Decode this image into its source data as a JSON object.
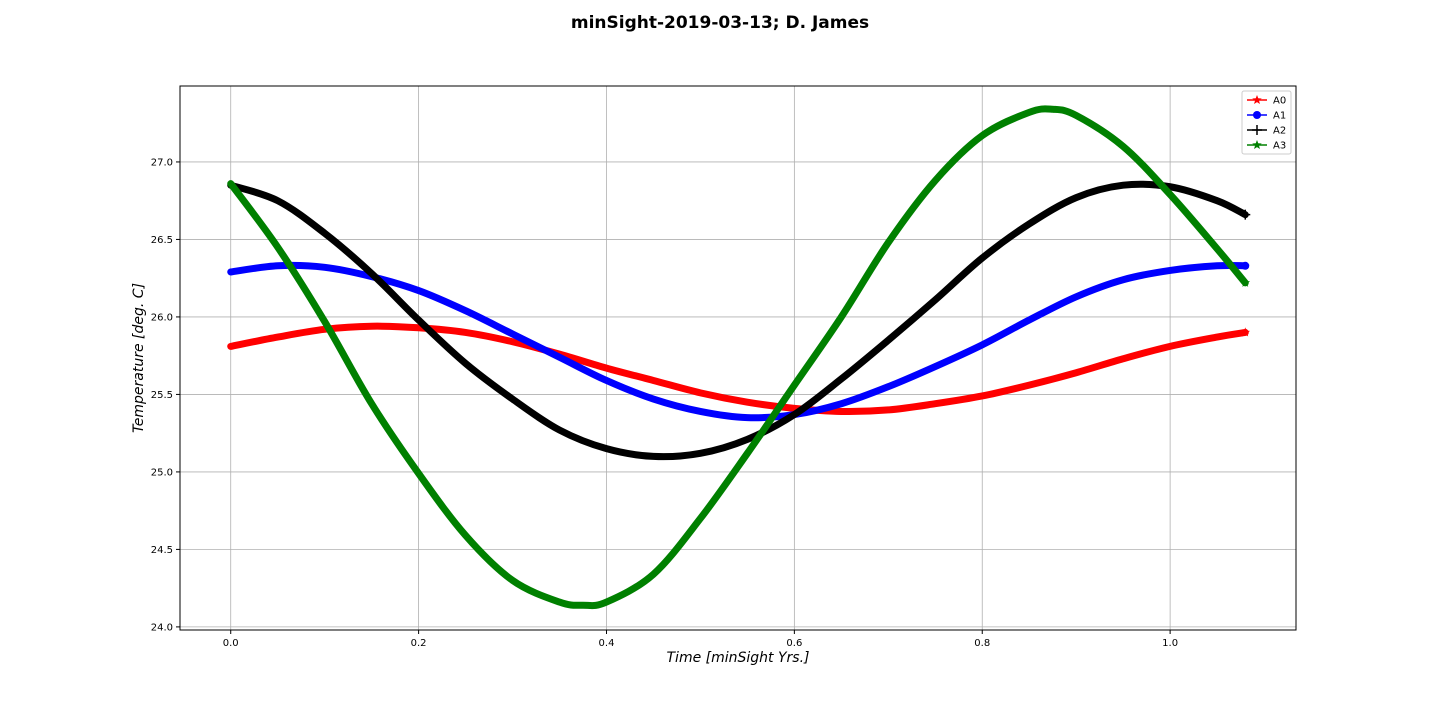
{
  "chart_data": {
    "type": "line",
    "title": "minSight-2019-03-13; D. James",
    "xlabel": "Time [minSight Yrs.]",
    "ylabel": "Temperature [deg. C]",
    "xlim": [
      -0.054,
      1.134
    ],
    "ylim": [
      23.98,
      27.49
    ],
    "xticks": [
      0.0,
      0.2,
      0.4,
      0.6,
      0.8,
      1.0
    ],
    "xtick_labels": [
      "0.0",
      "0.2",
      "0.4",
      "0.6",
      "0.8",
      "1.0"
    ],
    "yticks": [
      24.0,
      24.5,
      25.0,
      25.5,
      26.0,
      26.5,
      27.0
    ],
    "ytick_labels": [
      "24.0",
      "24.5",
      "25.0",
      "25.5",
      "26.0",
      "26.5",
      "27.0"
    ],
    "grid": true,
    "legend_position": "top-right",
    "series": [
      {
        "name": "A0",
        "color": "#ff0000",
        "marker": "star",
        "x": [
          0.0,
          0.05,
          0.1,
          0.15,
          0.2,
          0.25,
          0.3,
          0.35,
          0.4,
          0.45,
          0.5,
          0.55,
          0.6,
          0.65,
          0.7,
          0.75,
          0.8,
          0.85,
          0.9,
          0.95,
          1.0,
          1.05,
          1.08
        ],
        "values": [
          25.81,
          25.87,
          25.92,
          25.94,
          25.93,
          25.9,
          25.84,
          25.76,
          25.67,
          25.59,
          25.51,
          25.45,
          25.41,
          25.39,
          25.4,
          25.44,
          25.49,
          25.56,
          25.64,
          25.73,
          25.81,
          25.87,
          25.9
        ]
      },
      {
        "name": "A1",
        "color": "#0000ff",
        "marker": "circle",
        "x": [
          0.0,
          0.05,
          0.1,
          0.15,
          0.2,
          0.25,
          0.3,
          0.35,
          0.4,
          0.45,
          0.5,
          0.55,
          0.6,
          0.65,
          0.7,
          0.75,
          0.8,
          0.85,
          0.9,
          0.95,
          1.0,
          1.05,
          1.08
        ],
        "values": [
          26.29,
          26.33,
          26.32,
          26.26,
          26.17,
          26.04,
          25.89,
          25.74,
          25.59,
          25.47,
          25.39,
          25.35,
          25.37,
          25.44,
          25.55,
          25.68,
          25.82,
          25.98,
          26.13,
          26.24,
          26.3,
          26.33,
          26.33
        ]
      },
      {
        "name": "A2",
        "color": "#000000",
        "marker": "plus",
        "x": [
          0.0,
          0.05,
          0.1,
          0.15,
          0.2,
          0.25,
          0.3,
          0.35,
          0.4,
          0.45,
          0.5,
          0.55,
          0.6,
          0.65,
          0.7,
          0.75,
          0.8,
          0.85,
          0.9,
          0.95,
          1.0,
          1.05,
          1.08
        ],
        "values": [
          26.85,
          26.75,
          26.54,
          26.28,
          25.98,
          25.7,
          25.47,
          25.27,
          25.15,
          25.1,
          25.12,
          25.21,
          25.37,
          25.6,
          25.85,
          26.11,
          26.38,
          26.6,
          26.77,
          26.85,
          26.84,
          26.75,
          26.66
        ]
      },
      {
        "name": "A3",
        "color": "#008000",
        "marker": "star",
        "x": [
          0.0,
          0.05,
          0.1,
          0.15,
          0.2,
          0.25,
          0.3,
          0.35,
          0.375,
          0.4,
          0.45,
          0.5,
          0.55,
          0.6,
          0.65,
          0.7,
          0.75,
          0.8,
          0.85,
          0.875,
          0.9,
          0.95,
          1.0,
          1.05,
          1.08
        ],
        "values": [
          26.86,
          26.45,
          25.97,
          25.44,
          24.99,
          24.59,
          24.3,
          24.16,
          24.14,
          24.16,
          24.34,
          24.7,
          25.12,
          25.56,
          26.0,
          26.48,
          26.88,
          27.17,
          27.32,
          27.34,
          27.3,
          27.1,
          26.79,
          26.44,
          26.22
        ]
      }
    ]
  }
}
